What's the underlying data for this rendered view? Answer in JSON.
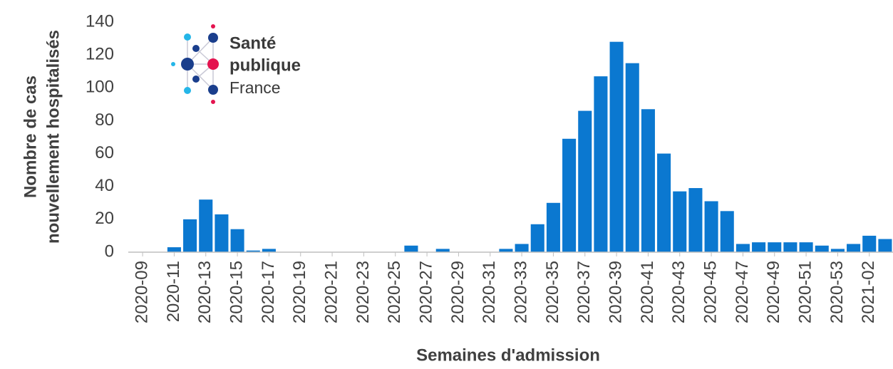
{
  "chart_data": {
    "type": "bar",
    "y_label": [
      "Nombre de cas",
      "nouvellement hospitalisés"
    ],
    "x_label": "Semaines d'admission",
    "logo": [
      "Santé",
      "publique",
      "France"
    ],
    "categories": [
      "2020-09",
      null,
      "2020-11",
      null,
      "2020-13",
      null,
      "2020-15",
      null,
      "2020-17",
      null,
      "2020-19",
      null,
      "2020-21",
      null,
      "2020-23",
      null,
      "2020-25",
      null,
      "2020-27",
      null,
      "2020-29",
      null,
      "2020-31",
      null,
      "2020-33",
      null,
      "2020-35",
      null,
      "2020-37",
      null,
      "2020-39",
      null,
      "2020-41",
      null,
      "2020-43",
      null,
      "2020-45",
      null,
      "2020-47",
      null,
      "2020-49",
      null,
      "2020-51",
      null,
      "2020-53",
      null,
      "2021-02",
      null
    ],
    "values": [
      0,
      0,
      3,
      20,
      32,
      23,
      14,
      1,
      2,
      0,
      0,
      0,
      0,
      0,
      0,
      0,
      0,
      4,
      0,
      2,
      0,
      0,
      0,
      2,
      5,
      17,
      30,
      69,
      86,
      107,
      128,
      115,
      87,
      60,
      37,
      39,
      31,
      25,
      5,
      6,
      6,
      6,
      6,
      4,
      2,
      5,
      10,
      8
    ],
    "color": "#0b78d0",
    "ylim": [
      0,
      140
    ],
    "yticks": [
      0,
      20,
      40,
      60,
      80,
      100,
      120,
      140
    ],
    "grid": false
  }
}
